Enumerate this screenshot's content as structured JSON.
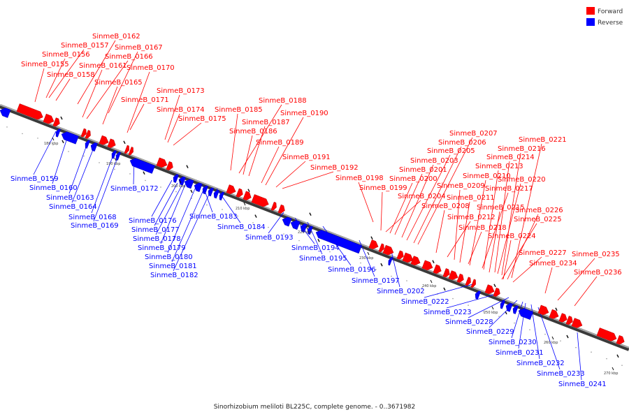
{
  "legend": {
    "forward": "Forward",
    "reverse": "Reverse"
  },
  "colors": {
    "forward": "#ff0000",
    "reverse": "#0000ff",
    "backbone": "#777777"
  },
  "caption": "Sinorhizobium meliloti BL225C, complete genome. - 0..3671982",
  "ticks": [
    "180 kbp",
    "190 kbp",
    "200 kbp",
    "210 kbp",
    "220 kbp",
    "230 kbp",
    "240 kbp",
    "250 kbp",
    "260 kbp",
    "270 kbp"
  ],
  "forward_labels": [
    "SinmeB_0162",
    "SinmeB_0157",
    "SinmeB_0167",
    "SinmeB_0156",
    "SinmeB_0166",
    "SinmeB_0155",
    "SinmeB_0161",
    "SinmeB_0170",
    "SinmeB_0158",
    "SinmeB_0165",
    "SinmeB_0173",
    "SinmeB_0171",
    "SinmeB_0188",
    "SinmeB_0174",
    "SinmeB_0185",
    "SinmeB_0190",
    "SinmeB_0175",
    "SinmeB_0187",
    "SinmeB_0186",
    "SinmeB_0207",
    "SinmeB_0189",
    "SinmeB_0206",
    "SinmeB_0221",
    "SinmeB_0205",
    "SinmeB_0216",
    "SinmeB_0191",
    "SinmeB_0203",
    "SinmeB_0214",
    "SinmeB_0192",
    "SinmeB_0201",
    "SinmeB_0213",
    "SinmeB_0198",
    "SinmeB_0200",
    "SinmeB_0210",
    "SinmeB_0220",
    "SinmeB_0199",
    "SinmeB_0209",
    "SinmeB_0217",
    "SinmeB_0204",
    "SinmeB_0211",
    "SinmeB_0208",
    "SinmeB_0215",
    "SinmeB_0226",
    "SinmeB_0212",
    "SinmeB_0225",
    "SinmeB_0218",
    "SinmeB_0224",
    "SinmeB_0227",
    "SinmeB_0235",
    "SinmeB_0234",
    "SinmeB_0236"
  ],
  "reverse_labels": [
    "SinmeB_0159",
    "SinmeB_0160",
    "SinmeB_0172",
    "SinmeB_0163",
    "SinmeB_0164",
    "SinmeB_0168",
    "SinmeB_0169",
    "SinmeB_0183",
    "SinmeB_0176",
    "SinmeB_0184",
    "SinmeB_0177",
    "SinmeB_0193",
    "SinmeB_0178",
    "SinmeB_0179",
    "SinmeB_0194",
    "SinmeB_0180",
    "SinmeB_0195",
    "SinmeB_0181",
    "SinmeB_0196",
    "SinmeB_0182",
    "SinmeB_0197",
    "SinmeB_0202",
    "SinmeB_0222",
    "SinmeB_0223",
    "SinmeB_0228",
    "SinmeB_0229",
    "SinmeB_0230",
    "SinmeB_0231",
    "SinmeB_0232",
    "SinmeB_0233",
    "SinmeB_0241"
  ]
}
